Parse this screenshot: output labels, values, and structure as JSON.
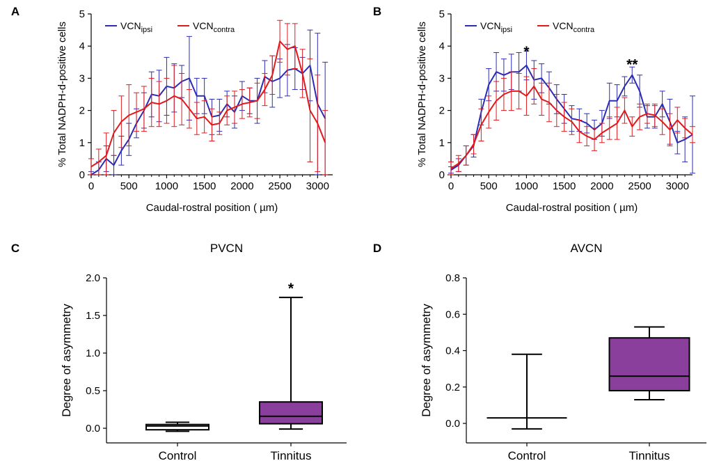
{
  "chart_data": [
    {
      "panel": "A",
      "type": "line",
      "ylabel": "% Total NADPH-d-positive cells",
      "xlabel": "Caudal-rostral position ( µm)",
      "xlim": [
        0,
        3200
      ],
      "ylim": [
        0,
        5
      ],
      "xticks": [
        0,
        500,
        1000,
        1500,
        2000,
        2500,
        3000
      ],
      "yticks": [
        0,
        1,
        2,
        3,
        4,
        5
      ],
      "legend": [
        {
          "base": "VCN",
          "sub": "ipsi",
          "color": "#2b2bb3"
        },
        {
          "base": "VCN",
          "sub": "contra",
          "color": "#e0191c"
        }
      ],
      "series": [
        {
          "name": "VCN ipsi",
          "color": "#2b2bb3",
          "x": [
            0,
            100,
            200,
            300,
            400,
            500,
            600,
            700,
            800,
            900,
            1000,
            1100,
            1200,
            1300,
            1400,
            1500,
            1600,
            1700,
            1800,
            1900,
            2000,
            2100,
            2200,
            2300,
            2400,
            2500,
            2600,
            2700,
            2800,
            2900,
            3000,
            3100
          ],
          "y": [
            0.0,
            0.15,
            0.5,
            0.3,
            0.75,
            1.1,
            1.6,
            2.0,
            2.5,
            2.45,
            2.75,
            2.7,
            2.9,
            3.0,
            2.45,
            2.45,
            1.8,
            1.85,
            2.2,
            1.95,
            2.45,
            2.3,
            2.3,
            3.05,
            2.9,
            3.0,
            3.25,
            3.3,
            3.15,
            3.4,
            2.2,
            1.75
          ],
          "err": [
            0.1,
            0.25,
            0.4,
            0.3,
            0.45,
            0.5,
            0.45,
            0.55,
            0.7,
            0.8,
            0.9,
            0.75,
            0.5,
            1.3,
            0.55,
            0.55,
            0.55,
            0.5,
            0.4,
            0.5,
            0.45,
            0.4,
            0.7,
            0.5,
            0.8,
            0.6,
            0.8,
            0.65,
            0.5,
            1.1,
            2.2,
            1.75
          ]
        },
        {
          "name": "VCN contra",
          "color": "#e0191c",
          "x": [
            0,
            100,
            200,
            300,
            400,
            500,
            600,
            700,
            800,
            900,
            1000,
            1100,
            1200,
            1300,
            1400,
            1500,
            1600,
            1700,
            1800,
            1900,
            2000,
            2100,
            2200,
            2300,
            2400,
            2500,
            2600,
            2700,
            2800,
            2900,
            3000,
            3100
          ],
          "y": [
            0.25,
            0.4,
            0.6,
            1.3,
            1.65,
            1.85,
            1.95,
            2.05,
            2.25,
            2.2,
            2.3,
            2.45,
            2.35,
            2.05,
            1.75,
            1.8,
            1.55,
            1.6,
            2.0,
            2.1,
            2.2,
            2.25,
            2.3,
            2.65,
            3.1,
            4.15,
            3.9,
            4.0,
            3.15,
            2.0,
            1.6,
            1.0
          ],
          "err": [
            0.25,
            0.4,
            0.7,
            0.7,
            0.8,
            0.95,
            0.6,
            0.7,
            0.75,
            0.7,
            0.7,
            0.95,
            0.8,
            0.6,
            0.5,
            0.5,
            0.5,
            0.35,
            0.45,
            0.5,
            0.45,
            0.45,
            0.55,
            0.5,
            0.6,
            0.65,
            0.8,
            0.7,
            0.75,
            1.6,
            1.5,
            1.0
          ]
        }
      ]
    },
    {
      "panel": "B",
      "type": "line",
      "ylabel": "% Total NADPH-d-positive cells",
      "xlabel": "Caudal-rostral position ( µm)",
      "xlim": [
        0,
        3200
      ],
      "ylim": [
        0,
        5
      ],
      "xticks": [
        0,
        500,
        1000,
        1500,
        2000,
        2500,
        3000
      ],
      "yticks": [
        0,
        1,
        2,
        3,
        4,
        5
      ],
      "legend": [
        {
          "base": "VCN",
          "sub": "ipsi",
          "color": "#2b2bb3"
        },
        {
          "base": "VCN",
          "sub": "contra",
          "color": "#e0191c"
        }
      ],
      "annotations": [
        {
          "text": "*",
          "x": 1000,
          "y": 3.85
        },
        {
          "text": "**",
          "x": 2400,
          "y": 3.45
        }
      ],
      "series": [
        {
          "name": "VCN ipsi",
          "color": "#2b2bb3",
          "x": [
            0,
            100,
            200,
            300,
            400,
            500,
            600,
            700,
            800,
            900,
            1000,
            1100,
            1200,
            1300,
            1400,
            1500,
            1600,
            1700,
            1800,
            1900,
            2000,
            2100,
            2200,
            2300,
            2400,
            2500,
            2600,
            2700,
            2800,
            2900,
            3000,
            3100,
            3200
          ],
          "y": [
            0.15,
            0.3,
            0.6,
            0.9,
            1.95,
            2.8,
            3.2,
            3.1,
            3.2,
            3.2,
            3.4,
            2.95,
            3.0,
            2.7,
            2.35,
            2.05,
            1.75,
            1.7,
            1.6,
            1.4,
            1.6,
            2.3,
            2.3,
            2.75,
            3.1,
            2.6,
            1.8,
            1.8,
            2.2,
            1.65,
            1.0,
            1.1,
            1.25
          ],
          "err": [
            0.1,
            0.2,
            0.3,
            0.35,
            0.4,
            0.5,
            0.6,
            0.5,
            0.55,
            0.6,
            0.45,
            0.6,
            0.45,
            0.5,
            0.45,
            0.45,
            0.4,
            0.35,
            0.3,
            0.3,
            0.4,
            0.55,
            0.5,
            0.3,
            0.25,
            0.5,
            0.35,
            0.35,
            0.4,
            0.7,
            0.35,
            0.7,
            1.2
          ]
        },
        {
          "name": "VCN contra",
          "color": "#e0191c",
          "x": [
            0,
            100,
            200,
            300,
            400,
            500,
            600,
            700,
            800,
            900,
            1000,
            1100,
            1200,
            1300,
            1400,
            1500,
            1600,
            1700,
            1800,
            1900,
            2000,
            2100,
            2200,
            2300,
            2400,
            2500,
            2600,
            2700,
            2800,
            2900,
            3000,
            3100,
            3200
          ],
          "y": [
            0.2,
            0.35,
            0.6,
            0.95,
            1.55,
            1.95,
            2.3,
            2.5,
            2.6,
            2.6,
            2.45,
            2.75,
            2.35,
            2.25,
            2.0,
            1.8,
            1.65,
            1.35,
            1.2,
            1.1,
            1.3,
            1.45,
            1.6,
            2.0,
            1.5,
            1.8,
            1.9,
            1.85,
            1.65,
            1.4,
            1.7,
            1.45,
            1.25
          ],
          "err": [
            0.2,
            0.25,
            0.3,
            0.3,
            0.5,
            0.5,
            0.6,
            0.5,
            0.6,
            0.55,
            0.6,
            0.55,
            0.5,
            0.6,
            0.5,
            0.45,
            0.4,
            0.35,
            0.3,
            0.35,
            0.3,
            0.35,
            0.5,
            0.4,
            0.3,
            0.4,
            0.3,
            0.35,
            0.4,
            0.5,
            0.4,
            0.3,
            0.25
          ]
        }
      ]
    },
    {
      "panel": "C",
      "type": "box",
      "title": "PVCN",
      "ylabel": "Degree of asymmetry",
      "categories": [
        "Control",
        "Tinnitus"
      ],
      "ylim": [
        -0.1,
        2.0
      ],
      "yticks": [
        "0.0",
        "0.5",
        "1.0",
        "1.5",
        "2.0"
      ],
      "boxes": [
        {
          "category": "Control",
          "min": -0.04,
          "q1": -0.02,
          "median": 0.03,
          "q3": 0.05,
          "max": 0.08,
          "fill": "#ffffff"
        },
        {
          "category": "Tinnitus",
          "min": -0.01,
          "q1": 0.06,
          "median": 0.16,
          "q3": 0.35,
          "max": 1.74,
          "fill": "#8b3f9d"
        }
      ],
      "annotations": [
        {
          "text": "*",
          "category": "Tinnitus",
          "y": 1.87
        }
      ]
    },
    {
      "panel": "D",
      "type": "box",
      "title": "AVCN",
      "ylabel": "Degree of asymmetry",
      "categories": [
        "Control",
        "Tinnitus"
      ],
      "ylim": [
        -0.1,
        0.8
      ],
      "yticks": [
        "0.0",
        "0.2",
        "0.4",
        "0.6",
        "0.8"
      ],
      "boxes": [
        {
          "category": "Control",
          "min": -0.03,
          "q1": 0.03,
          "median": 0.03,
          "q3": 0.03,
          "max": 0.38,
          "fill": "#ffffff"
        },
        {
          "category": "Tinnitus",
          "min": 0.13,
          "q1": 0.18,
          "median": 0.26,
          "q3": 0.47,
          "max": 0.53,
          "fill": "#8b3f9d"
        }
      ]
    }
  ]
}
